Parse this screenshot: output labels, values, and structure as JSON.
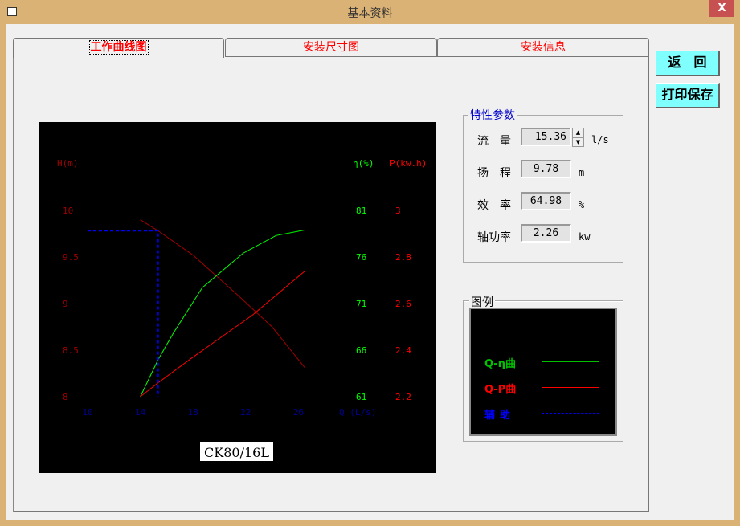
{
  "window": {
    "title": "基本资料",
    "close_label": "X"
  },
  "tabs": [
    {
      "label": "工作曲线图",
      "active": true
    },
    {
      "label": "安装尺寸图"
    },
    {
      "label": "安装信息"
    }
  ],
  "buttons": {
    "back": "返　回",
    "print_save": "打印保存"
  },
  "params": {
    "title": "特性参数",
    "rows": [
      {
        "label": "流　量",
        "value": "15.36",
        "unit": "l/s"
      },
      {
        "label": "扬　程",
        "value": "9.78",
        "unit": "m"
      },
      {
        "label": "效　率",
        "value": "64.98",
        "unit": "%"
      },
      {
        "label": "轴功率",
        "value": "2.26",
        "unit": "kw"
      }
    ]
  },
  "legend": {
    "title": "图例",
    "items": [
      {
        "label": "Q-η曲",
        "color": "#00c000",
        "style": "solid"
      },
      {
        "label": "Q-P曲",
        "color": "#ff0000",
        "style": "solid"
      },
      {
        "label": "辅助",
        "color": "#0000ff",
        "style": "dashed"
      }
    ]
  },
  "chart_data": {
    "type": "line",
    "model_label": "CK80/16L",
    "xlabel": "Q (L/s)",
    "x_ticks": [
      "10",
      "14",
      "18",
      "22",
      "26"
    ],
    "xlim": [
      10,
      26.5
    ],
    "y_left": {
      "label": "H(m)",
      "ticks": [
        "10",
        "9.5",
        "9",
        "8.5",
        "8"
      ],
      "lim": [
        8,
        10
      ],
      "color": "#a00000"
    },
    "y_eta": {
      "label": "η(%)",
      "ticks": [
        "81",
        "76",
        "71",
        "66",
        "61"
      ],
      "lim": [
        61,
        81
      ],
      "color": "#00ff00"
    },
    "y_power": {
      "label": "P(kw.h)",
      "ticks": [
        "3",
        "2.8",
        "2.6",
        "2.4",
        "2.2"
      ],
      "lim": [
        2.2,
        3
      ],
      "color": "#ff0000"
    },
    "series": [
      {
        "axis": "H",
        "color": "#a00000",
        "points": [
          [
            14,
            9.9
          ],
          [
            15.36,
            9.78
          ],
          [
            18,
            9.52
          ],
          [
            21.4,
            9.09
          ],
          [
            24,
            8.75
          ],
          [
            26.5,
            8.31
          ]
        ]
      },
      {
        "axis": "eta",
        "color": "#00ff00",
        "points": [
          [
            14,
            61
          ],
          [
            15.36,
            65
          ],
          [
            16.5,
            67.8
          ],
          [
            18.7,
            72.7
          ],
          [
            21.8,
            76.4
          ],
          [
            24.3,
            78.3
          ],
          [
            26.5,
            78.9
          ]
        ]
      },
      {
        "axis": "P",
        "color": "#ff0000",
        "points": [
          [
            14,
            2.2
          ],
          [
            15.36,
            2.26
          ],
          [
            18,
            2.37
          ],
          [
            22.5,
            2.55
          ],
          [
            26.5,
            2.74
          ]
        ]
      }
    ],
    "operating_point": {
      "Q": 15.36,
      "H": 9.78
    }
  }
}
